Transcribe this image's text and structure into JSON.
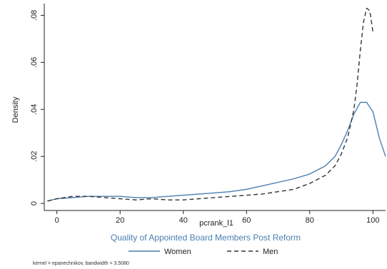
{
  "chart_data": {
    "type": "line",
    "xlabel": "pcrank_l1",
    "ylabel": "Density",
    "caption": "Quality of Appointed Board Members Post Reform",
    "note": "kernel = epanechnikov, bandwidth = 3.5080",
    "xlim": [
      -4,
      104
    ],
    "ylim": [
      -0.003,
      0.085
    ],
    "x_ticks": [
      0,
      20,
      40,
      60,
      80,
      100
    ],
    "x_tick_labels": [
      "0",
      "20",
      "40",
      "60",
      "80",
      "100"
    ],
    "y_ticks": [
      0,
      0.02,
      0.04,
      0.06,
      0.08
    ],
    "y_tick_labels": [
      "0",
      ".02",
      ".04",
      ".06",
      ".08"
    ],
    "grid": false,
    "legend_position": "bottom",
    "series": [
      {
        "name": "Women",
        "color": "#4a7fb0",
        "dash": "solid",
        "x": [
          -3,
          0,
          5,
          10,
          15,
          20,
          25,
          30,
          35,
          40,
          45,
          50,
          55,
          60,
          65,
          70,
          75,
          80,
          85,
          88,
          90,
          92,
          94,
          96,
          98,
          100,
          102,
          104
        ],
        "y": [
          0.001,
          0.002,
          0.0025,
          0.003,
          0.003,
          0.003,
          0.0025,
          0.0025,
          0.003,
          0.0035,
          0.004,
          0.0045,
          0.005,
          0.006,
          0.0075,
          0.009,
          0.0105,
          0.0125,
          0.016,
          0.02,
          0.025,
          0.031,
          0.038,
          0.043,
          0.043,
          0.039,
          0.028,
          0.02
        ]
      },
      {
        "name": "Men",
        "color": "#333333",
        "dash": "dashed",
        "x": [
          -3,
          0,
          5,
          10,
          15,
          20,
          25,
          30,
          35,
          40,
          45,
          50,
          55,
          60,
          65,
          70,
          75,
          80,
          85,
          88,
          90,
          92,
          94,
          95,
          96,
          97,
          98,
          99,
          100
        ],
        "y": [
          0.001,
          0.002,
          0.003,
          0.003,
          0.0025,
          0.002,
          0.0015,
          0.002,
          0.0015,
          0.0015,
          0.002,
          0.0025,
          0.003,
          0.0035,
          0.004,
          0.005,
          0.006,
          0.0085,
          0.012,
          0.016,
          0.021,
          0.028,
          0.04,
          0.051,
          0.065,
          0.077,
          0.083,
          0.082,
          0.073
        ]
      }
    ]
  }
}
